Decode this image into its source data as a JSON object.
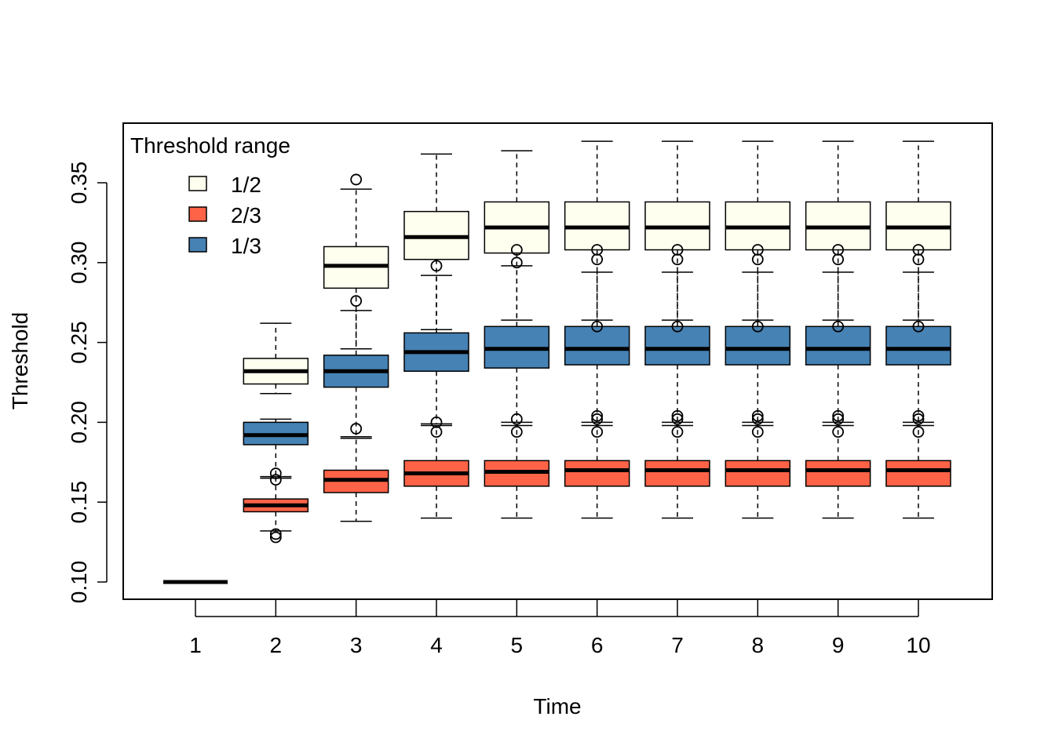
{
  "chart_data": {
    "type": "box",
    "xlabel": "Time",
    "ylabel": "Threshold",
    "categories": [
      "1",
      "2",
      "3",
      "4",
      "5",
      "6",
      "7",
      "8",
      "9",
      "10"
    ],
    "yticks": [
      "0.10",
      "0.15",
      "0.20",
      "0.25",
      "0.30",
      "0.35"
    ],
    "ylim": [
      0.089,
      0.387
    ],
    "legend": {
      "title": "Threshold range",
      "position": "top-left",
      "entries": [
        {
          "label": "1/2",
          "color": "#FFFFF0"
        },
        {
          "label": "2/3",
          "color": "#FF6347"
        },
        {
          "label": "1/3",
          "color": "#4682B4"
        }
      ]
    },
    "series": [
      {
        "name": "1/2",
        "color": "#FFFFF0",
        "boxes": [
          {
            "min": 0.1,
            "q1": 0.1,
            "median": 0.1,
            "q3": 0.1,
            "max": 0.1,
            "outliers": []
          },
          {
            "min": 0.218,
            "q1": 0.224,
            "median": 0.232,
            "q3": 0.24,
            "max": 0.262,
            "outliers": []
          },
          {
            "min": 0.246,
            "q1": 0.284,
            "median": 0.298,
            "q3": 0.31,
            "max": 0.346,
            "outliers": [
              0.352,
              0.276
            ]
          },
          {
            "min": 0.258,
            "q1": 0.302,
            "median": 0.316,
            "q3": 0.332,
            "max": 0.368,
            "outliers": [
              0.298
            ]
          },
          {
            "min": 0.264,
            "q1": 0.306,
            "median": 0.322,
            "q3": 0.338,
            "max": 0.37,
            "outliers": [
              0.308,
              0.3
            ]
          },
          {
            "min": 0.264,
            "q1": 0.308,
            "median": 0.322,
            "q3": 0.338,
            "max": 0.376,
            "outliers": [
              0.308,
              0.302
            ]
          },
          {
            "min": 0.264,
            "q1": 0.308,
            "median": 0.322,
            "q3": 0.338,
            "max": 0.376,
            "outliers": [
              0.308,
              0.302
            ]
          },
          {
            "min": 0.264,
            "q1": 0.308,
            "median": 0.322,
            "q3": 0.338,
            "max": 0.376,
            "outliers": [
              0.308,
              0.302
            ]
          },
          {
            "min": 0.264,
            "q1": 0.308,
            "median": 0.322,
            "q3": 0.338,
            "max": 0.376,
            "outliers": [
              0.308,
              0.302
            ]
          },
          {
            "min": 0.264,
            "q1": 0.308,
            "median": 0.322,
            "q3": 0.338,
            "max": 0.376,
            "outliers": [
              0.308,
              0.302
            ]
          }
        ]
      },
      {
        "name": "1/3",
        "color": "#4682B4",
        "boxes": [
          {
            "min": 0.1,
            "q1": 0.1,
            "median": 0.1,
            "q3": 0.1,
            "max": 0.1,
            "outliers": []
          },
          {
            "min": 0.165,
            "q1": 0.186,
            "median": 0.192,
            "q3": 0.2,
            "max": 0.202,
            "outliers": [
              0.164
            ]
          },
          {
            "min": 0.191,
            "q1": 0.222,
            "median": 0.232,
            "q3": 0.242,
            "max": 0.27,
            "outliers": [
              0.196
            ]
          },
          {
            "min": 0.199,
            "q1": 0.232,
            "median": 0.244,
            "q3": 0.256,
            "max": 0.292,
            "outliers": [
              0.2,
              0.194
            ]
          },
          {
            "min": 0.2,
            "q1": 0.234,
            "median": 0.246,
            "q3": 0.26,
            "max": 0.298,
            "outliers": [
              0.202,
              0.194
            ]
          },
          {
            "min": 0.2,
            "q1": 0.236,
            "median": 0.246,
            "q3": 0.26,
            "max": 0.294,
            "outliers": [
              0.26,
              0.204,
              0.202,
              0.194
            ]
          },
          {
            "min": 0.2,
            "q1": 0.236,
            "median": 0.246,
            "q3": 0.26,
            "max": 0.294,
            "outliers": [
              0.26,
              0.204,
              0.202,
              0.194
            ]
          },
          {
            "min": 0.2,
            "q1": 0.236,
            "median": 0.246,
            "q3": 0.26,
            "max": 0.294,
            "outliers": [
              0.26,
              0.204,
              0.202,
              0.194
            ]
          },
          {
            "min": 0.2,
            "q1": 0.236,
            "median": 0.246,
            "q3": 0.26,
            "max": 0.294,
            "outliers": [
              0.26,
              0.204,
              0.202,
              0.194
            ]
          },
          {
            "min": 0.2,
            "q1": 0.236,
            "median": 0.246,
            "q3": 0.26,
            "max": 0.294,
            "outliers": [
              0.26,
              0.204,
              0.202,
              0.194
            ]
          }
        ]
      },
      {
        "name": "2/3",
        "color": "#FF6347",
        "boxes": [
          {
            "min": 0.1,
            "q1": 0.1,
            "median": 0.1,
            "q3": 0.1,
            "max": 0.1,
            "outliers": []
          },
          {
            "min": 0.132,
            "q1": 0.144,
            "median": 0.148,
            "q3": 0.152,
            "max": 0.166,
            "outliers": [
              0.168,
              0.13,
              0.128
            ]
          },
          {
            "min": 0.138,
            "q1": 0.156,
            "median": 0.164,
            "q3": 0.17,
            "max": 0.19,
            "outliers": []
          },
          {
            "min": 0.14,
            "q1": 0.16,
            "median": 0.168,
            "q3": 0.176,
            "max": 0.198,
            "outliers": []
          },
          {
            "min": 0.14,
            "q1": 0.16,
            "median": 0.169,
            "q3": 0.176,
            "max": 0.198,
            "outliers": []
          },
          {
            "min": 0.14,
            "q1": 0.16,
            "median": 0.17,
            "q3": 0.176,
            "max": 0.198,
            "outliers": []
          },
          {
            "min": 0.14,
            "q1": 0.16,
            "median": 0.17,
            "q3": 0.176,
            "max": 0.198,
            "outliers": []
          },
          {
            "min": 0.14,
            "q1": 0.16,
            "median": 0.17,
            "q3": 0.176,
            "max": 0.198,
            "outliers": []
          },
          {
            "min": 0.14,
            "q1": 0.16,
            "median": 0.17,
            "q3": 0.176,
            "max": 0.198,
            "outliers": []
          },
          {
            "min": 0.14,
            "q1": 0.16,
            "median": 0.17,
            "q3": 0.176,
            "max": 0.198,
            "outliers": []
          }
        ]
      }
    ]
  }
}
